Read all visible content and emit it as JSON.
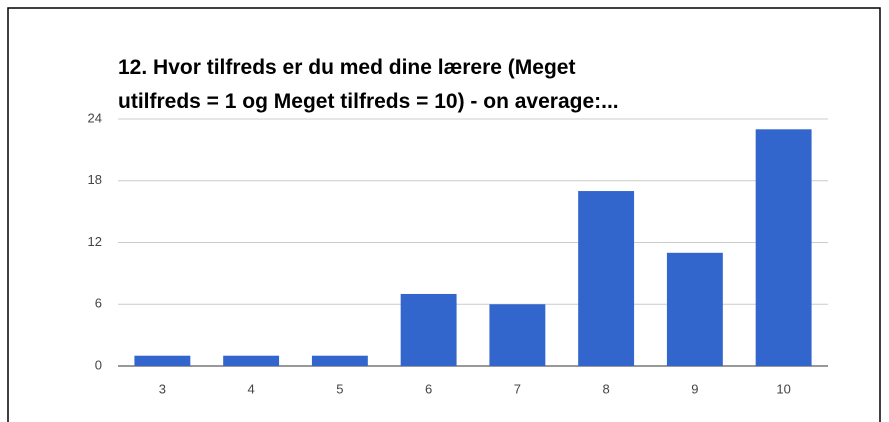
{
  "chart_data": {
    "type": "bar",
    "title": [
      "12. Hvor tilfreds er du med dine lærere (Meget",
      "utilfreds = 1 og Meget tilfreds = 10) - on average:..."
    ],
    "categories": [
      "3",
      "4",
      "5",
      "6",
      "7",
      "8",
      "9",
      "10"
    ],
    "values": [
      1,
      1,
      1,
      7,
      6,
      17,
      11,
      23
    ],
    "color": "#3366cc",
    "ylim": [
      0,
      24
    ],
    "yticks": [
      0,
      6,
      12,
      18,
      24
    ],
    "grid": true
  }
}
